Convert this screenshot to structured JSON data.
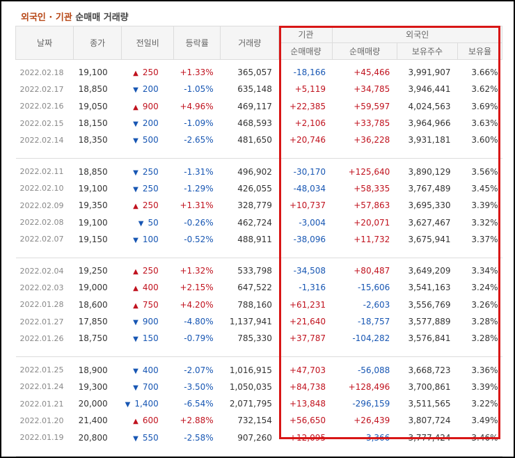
{
  "title": {
    "foreign": "외국인",
    "sep": " · ",
    "inst": "기관",
    "rest": " 순매매 거래량"
  },
  "headers": {
    "date": "날짜",
    "close": "종가",
    "change": "전일비",
    "rate": "등락률",
    "volume": "거래량",
    "institution": "기관",
    "foreign": "외국인",
    "inst_net": "순매매량",
    "foreign_net": "순매매량",
    "foreign_hold": "보유주수",
    "foreign_ratio": "보유율"
  },
  "colors": {
    "up": "#c0121e",
    "down": "#1756b3",
    "title": "#b74716",
    "highlight": "#d81616"
  },
  "groups": [
    [
      {
        "date": "2022.02.18",
        "close": "19,100",
        "dir": "up",
        "change": "250",
        "rate": "+1.33%",
        "volume": "365,057",
        "inst": "-18,166",
        "fnet": "+45,466",
        "fhold": "3,991,907",
        "fratio": "3.66%"
      },
      {
        "date": "2022.02.17",
        "close": "18,850",
        "dir": "down",
        "change": "200",
        "rate": "-1.05%",
        "volume": "635,148",
        "inst": "+5,119",
        "fnet": "+34,785",
        "fhold": "3,946,441",
        "fratio": "3.62%"
      },
      {
        "date": "2022.02.16",
        "close": "19,050",
        "dir": "up",
        "change": "900",
        "rate": "+4.96%",
        "volume": "469,117",
        "inst": "+22,385",
        "fnet": "+59,597",
        "fhold": "4,024,563",
        "fratio": "3.69%"
      },
      {
        "date": "2022.02.15",
        "close": "18,150",
        "dir": "down",
        "change": "200",
        "rate": "-1.09%",
        "volume": "468,593",
        "inst": "+2,106",
        "fnet": "+33,785",
        "fhold": "3,964,966",
        "fratio": "3.63%"
      },
      {
        "date": "2022.02.14",
        "close": "18,350",
        "dir": "down",
        "change": "500",
        "rate": "-2.65%",
        "volume": "481,650",
        "inst": "+20,746",
        "fnet": "+36,228",
        "fhold": "3,931,181",
        "fratio": "3.60%"
      }
    ],
    [
      {
        "date": "2022.02.11",
        "close": "18,850",
        "dir": "down",
        "change": "250",
        "rate": "-1.31%",
        "volume": "496,902",
        "inst": "-30,170",
        "fnet": "+125,640",
        "fhold": "3,890,129",
        "fratio": "3.56%"
      },
      {
        "date": "2022.02.10",
        "close": "19,100",
        "dir": "down",
        "change": "250",
        "rate": "-1.29%",
        "volume": "426,055",
        "inst": "-48,034",
        "fnet": "+58,335",
        "fhold": "3,767,489",
        "fratio": "3.45%"
      },
      {
        "date": "2022.02.09",
        "close": "19,350",
        "dir": "up",
        "change": "250",
        "rate": "+1.31%",
        "volume": "328,779",
        "inst": "+10,737",
        "fnet": "+57,863",
        "fhold": "3,695,330",
        "fratio": "3.39%"
      },
      {
        "date": "2022.02.08",
        "close": "19,100",
        "dir": "down",
        "change": "50",
        "rate": "-0.26%",
        "volume": "462,724",
        "inst": "-3,004",
        "fnet": "+20,071",
        "fhold": "3,627,467",
        "fratio": "3.32%"
      },
      {
        "date": "2022.02.07",
        "close": "19,150",
        "dir": "down",
        "change": "100",
        "rate": "-0.52%",
        "volume": "488,911",
        "inst": "-38,096",
        "fnet": "+11,732",
        "fhold": "3,675,941",
        "fratio": "3.37%"
      }
    ],
    [
      {
        "date": "2022.02.04",
        "close": "19,250",
        "dir": "up",
        "change": "250",
        "rate": "+1.32%",
        "volume": "533,798",
        "inst": "-34,508",
        "fnet": "+80,487",
        "fhold": "3,649,209",
        "fratio": "3.34%"
      },
      {
        "date": "2022.02.03",
        "close": "19,000",
        "dir": "up",
        "change": "400",
        "rate": "+2.15%",
        "volume": "647,522",
        "inst": "-1,316",
        "fnet": "-15,606",
        "fhold": "3,541,163",
        "fratio": "3.24%"
      },
      {
        "date": "2022.01.28",
        "close": "18,600",
        "dir": "up",
        "change": "750",
        "rate": "+4.20%",
        "volume": "788,160",
        "inst": "+61,231",
        "fnet": "-2,603",
        "fhold": "3,556,769",
        "fratio": "3.26%"
      },
      {
        "date": "2022.01.27",
        "close": "17,850",
        "dir": "down",
        "change": "900",
        "rate": "-4.80%",
        "volume": "1,137,941",
        "inst": "+21,640",
        "fnet": "-18,757",
        "fhold": "3,577,889",
        "fratio": "3.28%"
      },
      {
        "date": "2022.01.26",
        "close": "18,750",
        "dir": "down",
        "change": "150",
        "rate": "-0.79%",
        "volume": "785,330",
        "inst": "+37,787",
        "fnet": "-104,282",
        "fhold": "3,576,841",
        "fratio": "3.28%"
      }
    ],
    [
      {
        "date": "2022.01.25",
        "close": "18,900",
        "dir": "down",
        "change": "400",
        "rate": "-2.07%",
        "volume": "1,016,915",
        "inst": "+47,703",
        "fnet": "-56,088",
        "fhold": "3,668,723",
        "fratio": "3.36%"
      },
      {
        "date": "2022.01.24",
        "close": "19,300",
        "dir": "down",
        "change": "700",
        "rate": "-3.50%",
        "volume": "1,050,035",
        "inst": "+84,738",
        "fnet": "+128,496",
        "fhold": "3,700,861",
        "fratio": "3.39%"
      },
      {
        "date": "2022.01.21",
        "close": "20,000",
        "dir": "down",
        "change": "1,400",
        "rate": "-6.54%",
        "volume": "2,071,795",
        "inst": "+13,848",
        "fnet": "-296,159",
        "fhold": "3,511,565",
        "fratio": "3.22%"
      },
      {
        "date": "2022.01.20",
        "close": "21,400",
        "dir": "up",
        "change": "600",
        "rate": "+2.88%",
        "volume": "732,154",
        "inst": "+56,650",
        "fnet": "+26,439",
        "fhold": "3,807,724",
        "fratio": "3.49%"
      },
      {
        "date": "2022.01.19",
        "close": "20,800",
        "dir": "down",
        "change": "550",
        "rate": "-2.58%",
        "volume": "907,260",
        "inst": "+12,095",
        "fnet": "-3,366",
        "fhold": "3,777,424",
        "fratio": "3.46%"
      }
    ]
  ]
}
